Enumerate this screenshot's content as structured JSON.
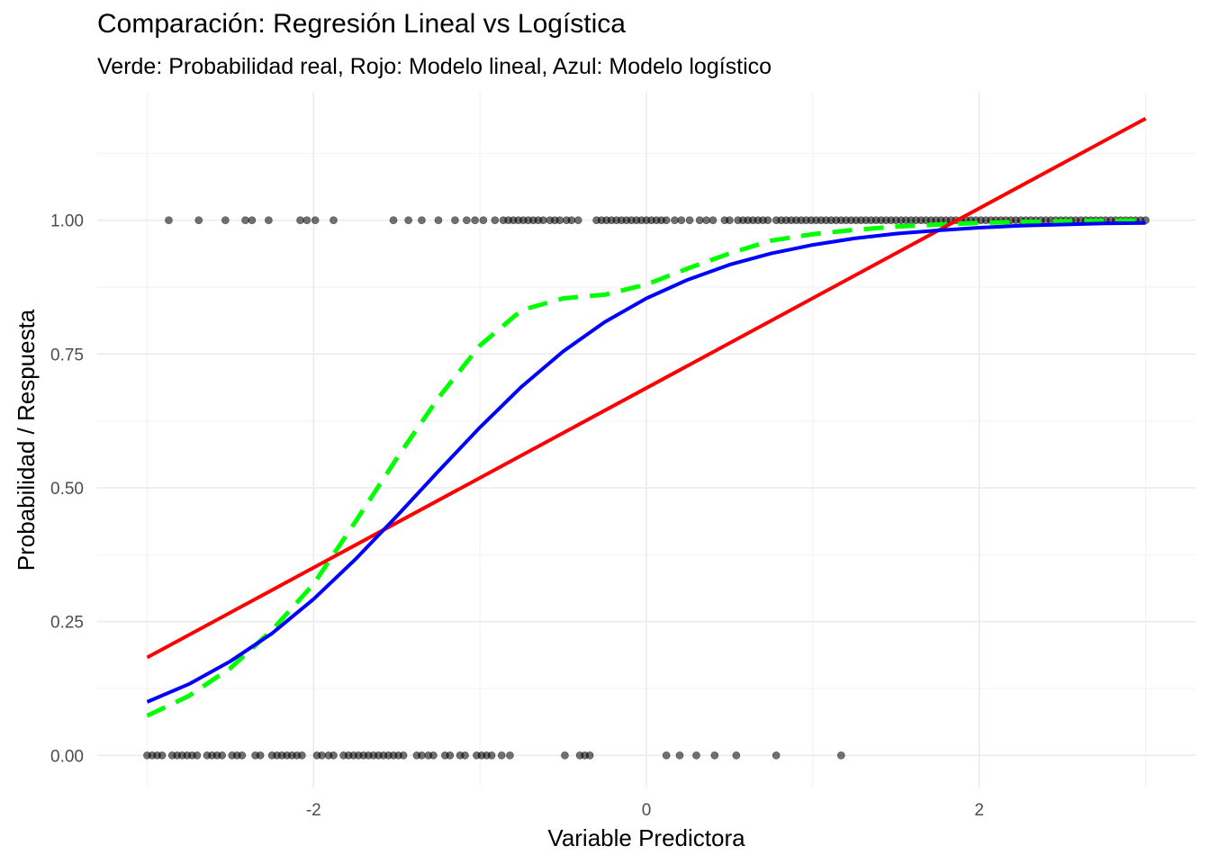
{
  "chart_data": {
    "type": "scatter",
    "title": "Comparación: Regresión Lineal vs Logística",
    "subtitle": "Verde: Probabilidad real, Rojo: Modelo lineal, Azul: Modelo logístico",
    "xlabel": "Variable Predictora",
    "ylabel": "Probabilidad / Respuesta",
    "xlim": [
      -3.3,
      3.3
    ],
    "ylim": [
      -0.06,
      1.24
    ],
    "x_ticks": [
      -2,
      0,
      2
    ],
    "x_tick_labels": [
      "-2",
      "0",
      "2"
    ],
    "y_ticks": [
      0,
      0.25,
      0.5,
      0.75,
      1
    ],
    "y_tick_labels": [
      "0.00",
      "0.25",
      "0.50",
      "0.75",
      "1.00"
    ],
    "grid": true,
    "points": {
      "y1_x": [
        -2.87,
        -2.69,
        -2.53,
        -2.41,
        -2.37,
        -2.27,
        -2.08,
        -2.04,
        -1.99,
        -1.88,
        -1.52,
        -1.43,
        -1.35,
        -1.25,
        -1.15,
        -1.08,
        -1.03,
        -0.98,
        -0.91,
        -0.86,
        -0.83,
        -0.8,
        -0.77,
        -0.74,
        -0.71,
        -0.68,
        -0.65,
        -0.62,
        -0.58,
        -0.55,
        -0.52,
        -0.48,
        -0.45,
        -0.41,
        -0.3,
        -0.27,
        -0.24,
        -0.21,
        -0.18,
        -0.15,
        -0.12,
        -0.09,
        -0.06,
        -0.03,
        0.0,
        0.03,
        0.06,
        0.09,
        0.12,
        0.17,
        0.21,
        0.26,
        0.32,
        0.36,
        0.4,
        0.47,
        0.5,
        0.55,
        0.58,
        0.61,
        0.64,
        0.67,
        0.7,
        0.73,
        0.78,
        0.81,
        0.84,
        0.87,
        0.9,
        0.93,
        0.96,
        0.99,
        1.02,
        1.05,
        1.08,
        1.11,
        1.14,
        1.17,
        1.2,
        1.23,
        1.26,
        1.29,
        1.32,
        1.35,
        1.38,
        1.41,
        1.44,
        1.47,
        1.5,
        1.53,
        1.56,
        1.59,
        1.62,
        1.65,
        1.68,
        1.71,
        1.74,
        1.77,
        1.8,
        1.83,
        1.86,
        1.89,
        1.92,
        1.95,
        1.98,
        2.01,
        2.04,
        2.07,
        2.1,
        2.13,
        2.16,
        2.19,
        2.22,
        2.25,
        2.28,
        2.31,
        2.34,
        2.37,
        2.4,
        2.43,
        2.46,
        2.49,
        2.52,
        2.55,
        2.58,
        2.61,
        2.64,
        2.67,
        2.7,
        2.73,
        2.76,
        2.79,
        2.82,
        2.85,
        2.88,
        2.91,
        2.94,
        2.97,
        3.0
      ],
      "y0_x": [
        -3.0,
        -2.97,
        -2.94,
        -2.91,
        -2.85,
        -2.82,
        -2.79,
        -2.76,
        -2.73,
        -2.7,
        -2.64,
        -2.61,
        -2.58,
        -2.55,
        -2.49,
        -2.46,
        -2.43,
        -2.35,
        -2.32,
        -2.25,
        -2.22,
        -2.19,
        -2.16,
        -2.13,
        -2.1,
        -2.07,
        -1.98,
        -1.95,
        -1.91,
        -1.88,
        -1.82,
        -1.79,
        -1.76,
        -1.73,
        -1.7,
        -1.67,
        -1.64,
        -1.61,
        -1.58,
        -1.55,
        -1.52,
        -1.49,
        -1.46,
        -1.38,
        -1.35,
        -1.31,
        -1.28,
        -1.21,
        -1.18,
        -1.12,
        -1.09,
        -1.02,
        -0.99,
        -0.96,
        -0.93,
        -0.87,
        -0.82,
        -0.49,
        -0.4,
        -0.37,
        -0.34,
        0.12,
        0.2,
        0.3,
        0.41,
        0.54,
        0.78,
        1.17
      ]
    },
    "series": [
      {
        "name": "Probabilidad real",
        "color": "#00ff00",
        "style": "dashed",
        "x": [
          -3,
          -2.75,
          -2.5,
          -2.25,
          -2,
          -1.75,
          -1.5,
          -1.25,
          -1,
          -0.75,
          -0.5,
          -0.25,
          0,
          0.25,
          0.5,
          0.75,
          1,
          1.25,
          1.5,
          1.75,
          2,
          2.25,
          2.5,
          2.75,
          3
        ],
        "y": [
          0.074,
          0.111,
          0.163,
          0.234,
          0.32,
          0.436,
          0.555,
          0.668,
          0.766,
          0.832,
          0.854,
          0.861,
          0.88,
          0.91,
          0.938,
          0.962,
          0.974,
          0.982,
          0.988,
          0.992,
          0.995,
          0.997,
          0.998,
          0.999,
          0.999
        ]
      },
      {
        "name": "Modelo lineal",
        "color": "#ff0000",
        "style": "solid",
        "x": [
          -3,
          3
        ],
        "y": [
          0.183,
          1.19
        ]
      },
      {
        "name": "Modelo logístico",
        "color": "#0000ff",
        "style": "solid",
        "x": [
          -3,
          -2.75,
          -2.5,
          -2.25,
          -2,
          -1.75,
          -1.5,
          -1.25,
          -1,
          -0.75,
          -0.5,
          -0.25,
          0,
          0.25,
          0.5,
          0.75,
          1,
          1.25,
          1.5,
          1.75,
          2,
          2.25,
          2.5,
          2.75,
          3
        ],
        "y": [
          0.1,
          0.133,
          0.176,
          0.228,
          0.292,
          0.366,
          0.447,
          0.531,
          0.613,
          0.689,
          0.755,
          0.81,
          0.854,
          0.889,
          0.917,
          0.938,
          0.954,
          0.966,
          0.975,
          0.981,
          0.986,
          0.99,
          0.992,
          0.994,
          0.995
        ]
      }
    ]
  }
}
